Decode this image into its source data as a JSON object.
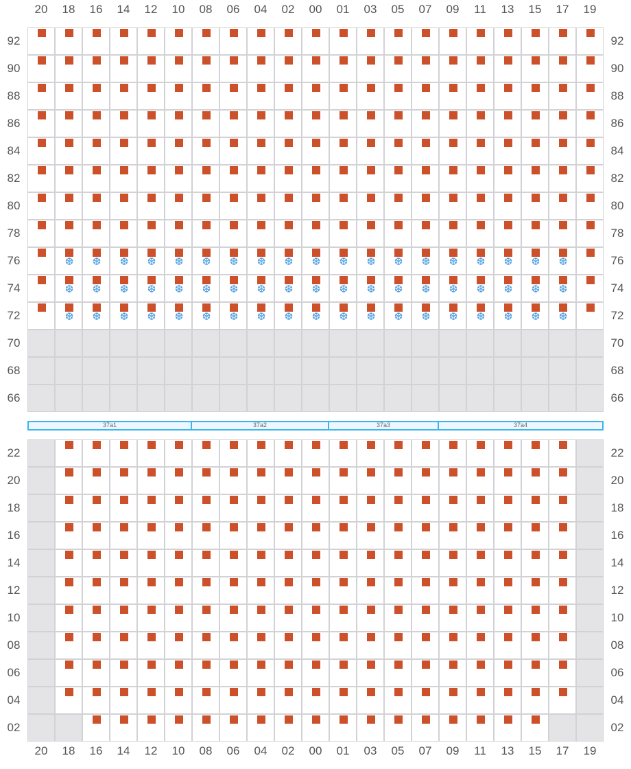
{
  "colors": {
    "server": "#cc512a",
    "cooling": "#4a9de0",
    "unavailable": "#e4e4e7",
    "zone_border": "#3ab5ee"
  },
  "legend_codes": {
    "s": "server",
    "f": "server-with-cooling",
    "g": "unavailable",
    "e": "empty"
  },
  "columns": [
    "20",
    "18",
    "16",
    "14",
    "12",
    "10",
    "08",
    "06",
    "04",
    "02",
    "00",
    "01",
    "03",
    "05",
    "07",
    "09",
    "11",
    "13",
    "15",
    "17",
    "19"
  ],
  "top_section": {
    "rows": [
      {
        "label": "92",
        "cells": "sssssssssssssssssssss"
      },
      {
        "label": "90",
        "cells": "sssssssssssssssssssss"
      },
      {
        "label": "88",
        "cells": "sssssssssssssssssssss"
      },
      {
        "label": "86",
        "cells": "sssssssssssssssssssss"
      },
      {
        "label": "84",
        "cells": "sssssssssssssssssssss"
      },
      {
        "label": "82",
        "cells": "sssssssssssssssssssss"
      },
      {
        "label": "80",
        "cells": "sssssssssssssssssssss"
      },
      {
        "label": "78",
        "cells": "sssssssssssssssssssss"
      },
      {
        "label": "76",
        "cells": "sfffffffffffffffffffs"
      },
      {
        "label": "74",
        "cells": "sfffffffffffffffffffs"
      },
      {
        "label": "72",
        "cells": "sfffffffffffffffffffs"
      },
      {
        "label": "70",
        "cells": "ggggggggggggggggggggg"
      },
      {
        "label": "68",
        "cells": "ggggggggggggggggggggg"
      },
      {
        "label": "66",
        "cells": "ggggggggggggggggggggg"
      }
    ]
  },
  "zones": [
    {
      "label": "37a1",
      "from": "20",
      "to": "10"
    },
    {
      "label": "37a2",
      "from": "08",
      "to": "00"
    },
    {
      "label": "37a3",
      "from": "01",
      "to": "07"
    },
    {
      "label": "37a4",
      "from": "09",
      "to": "19"
    }
  ],
  "bottom_section": {
    "rows": [
      {
        "label": "22",
        "cells": "gsssssssssssssssssssg"
      },
      {
        "label": "20",
        "cells": "gsssssssssssssssssssg"
      },
      {
        "label": "18",
        "cells": "gsssssssssssssssssssg"
      },
      {
        "label": "16",
        "cells": "gsssssssssssssssssssg"
      },
      {
        "label": "14",
        "cells": "gsssssssssssssssssssg"
      },
      {
        "label": "12",
        "cells": "gsssssssssssssssssssg"
      },
      {
        "label": "10",
        "cells": "gsssssssssssssssssssg"
      },
      {
        "label": "08",
        "cells": "gsssssssssssssssssssg"
      },
      {
        "label": "06",
        "cells": "gsssssssssssssssssssg"
      },
      {
        "label": "04",
        "cells": "gsssssssssssssssssssg"
      },
      {
        "label": "02",
        "cells": "ggsssssssssssssssssgg"
      }
    ]
  },
  "icons": {
    "server": "square",
    "cooling": "snowflake-icon"
  }
}
